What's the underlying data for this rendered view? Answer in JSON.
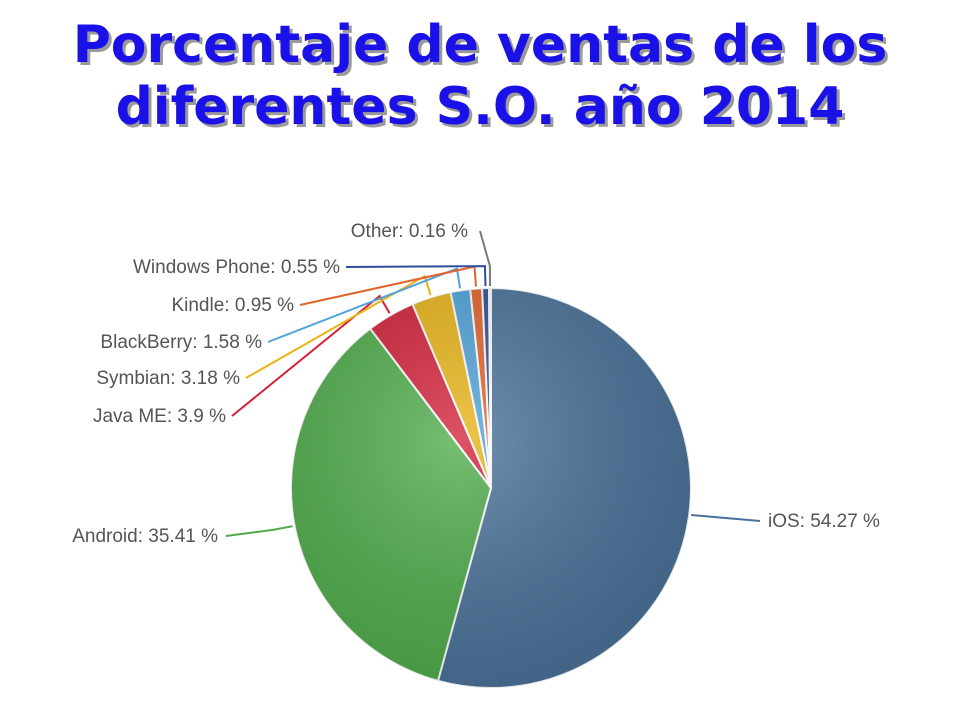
{
  "title": {
    "line1": "Porcentaje de ventas de los",
    "line2": "diferentes S.O. año 2014"
  },
  "chart_data": {
    "type": "pie",
    "title": "Porcentaje de ventas de los diferentes S.O. año 2014",
    "unit": "%",
    "slices": [
      {
        "name": "iOS",
        "value": 54.27,
        "label": "iOS: 54.27 %",
        "color": "#4a7299"
      },
      {
        "name": "Android",
        "value": 35.41,
        "label": "Android: 35.41 %",
        "color": "#4fac4b"
      },
      {
        "name": "Java ME",
        "value": 3.9,
        "label": "Java ME: 3.9 %",
        "color": "#d3223a"
      },
      {
        "name": "Symbian",
        "value": 3.18,
        "label": "Symbian: 3.18 %",
        "color": "#e8b418"
      },
      {
        "name": "BlackBerry",
        "value": 1.58,
        "label": "BlackBerry: 1.58 %",
        "color": "#4fa3d8"
      },
      {
        "name": "Kindle",
        "value": 0.95,
        "label": "Kindle: 0.95 %",
        "color": "#e2632a"
      },
      {
        "name": "Windows Phone",
        "value": 0.55,
        "label": "Windows Phone: 0.55 %",
        "color": "#2f4f9a"
      },
      {
        "name": "Other",
        "value": 0.16,
        "label": "Other: 0.16 %",
        "color": "#7a7a7a"
      }
    ]
  }
}
